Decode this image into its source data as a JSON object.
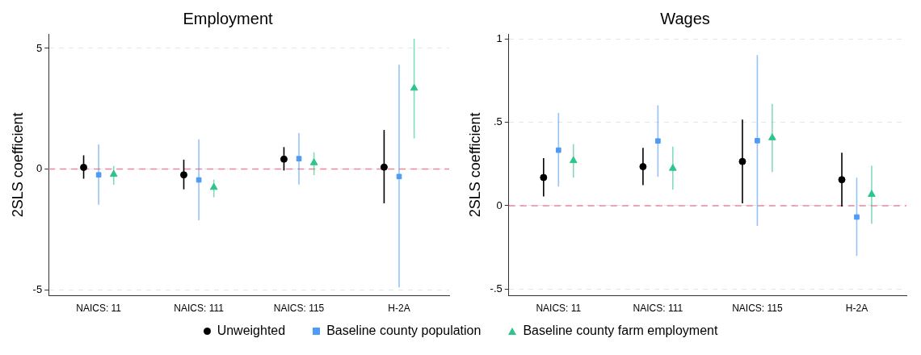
{
  "chart_data": [
    {
      "type": "scatter",
      "title": "Employment",
      "ylabel": "2SLS coefficient",
      "categories": [
        "NAICS: 11",
        "NAICS: 111",
        "NAICS: 115",
        "H-2A"
      ],
      "ylim": [
        -5.25,
        5.6
      ],
      "yticks": [
        -5,
        0,
        5
      ],
      "grid": "y",
      "legend": "bottom",
      "ref_lines": [
        {
          "axis": "y",
          "value": 0,
          "color": "#e8899c",
          "line_style": "dashed"
        }
      ],
      "series": [
        {
          "name": "Unweighted",
          "color": "#000000",
          "marker": "circle",
          "values": [
            0.07,
            -0.24,
            0.41,
            0.08
          ],
          "errors": [
            [
              -0.4,
              0.57
            ],
            [
              -0.84,
              0.39
            ],
            [
              -0.06,
              0.91
            ],
            [
              -1.42,
              1.62
            ]
          ]
        },
        {
          "name": "Baseline county population",
          "color": "#4e9bf5",
          "marker": "square",
          "values": [
            -0.24,
            -0.45,
            0.43,
            -0.31
          ],
          "errors": [
            [
              -1.48,
              1.02
            ],
            [
              -2.12,
              1.23
            ],
            [
              -0.64,
              1.49
            ],
            [
              -4.9,
              4.32
            ]
          ]
        },
        {
          "name": "Baseline county farm employment",
          "color": "#2ec48c",
          "marker": "triangle",
          "values": [
            -0.22,
            -0.76,
            0.26,
            3.35
          ],
          "errors": [
            [
              -0.65,
              0.13
            ],
            [
              -1.17,
              -0.44
            ],
            [
              -0.25,
              0.69
            ],
            [
              1.27,
              5.4
            ]
          ]
        }
      ]
    },
    {
      "type": "scatter",
      "title": "Wages",
      "ylabel": "2SLS coefficient",
      "categories": [
        "NAICS: 11",
        "NAICS: 111",
        "NAICS: 115",
        "H-2A"
      ],
      "ylim": [
        -0.54,
        1.03
      ],
      "yticks": [
        {
          "value": -0.5,
          "label": "-.5"
        },
        0,
        {
          "value": 0.5,
          "label": ".5"
        },
        1
      ],
      "grid": "y",
      "ref_lines": [
        {
          "axis": "y",
          "value": 0,
          "color": "#e8899c",
          "line_style": "dashed"
        }
      ],
      "series": [
        {
          "color": "#000000",
          "marker": "circle",
          "values": [
            0.169,
            0.234,
            0.265,
            0.156
          ],
          "errors": [
            [
              0.056,
              0.285
            ],
            [
              0.123,
              0.347
            ],
            [
              0.014,
              0.516
            ],
            [
              -0.005,
              0.318
            ]
          ]
        },
        {
          "color": "#4e9bf5",
          "marker": "square",
          "values": [
            0.333,
            0.388,
            0.39,
            -0.068
          ],
          "errors": [
            [
              0.115,
              0.556
            ],
            [
              0.174,
              0.602
            ],
            [
              -0.121,
              0.903
            ],
            [
              -0.301,
              0.168
            ]
          ]
        },
        {
          "color": "#2ec48c",
          "marker": "triangle",
          "values": [
            0.27,
            0.224,
            0.407,
            0.068
          ],
          "errors": [
            [
              0.168,
              0.369
            ],
            [
              0.096,
              0.354
            ],
            [
              0.202,
              0.61
            ],
            [
              -0.109,
              0.239
            ]
          ]
        }
      ]
    }
  ]
}
